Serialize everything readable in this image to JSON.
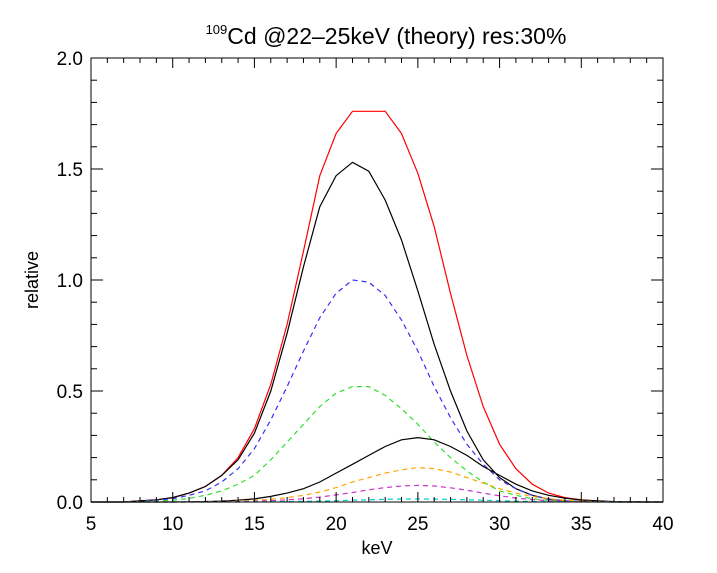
{
  "chart_data": {
    "type": "line",
    "title": "Cd @22–25keV (theory) res:30%",
    "title_superscript": "109",
    "xlabel": "keV",
    "ylabel": "relative",
    "xlim": [
      5,
      40
    ],
    "ylim": [
      0,
      2.0
    ],
    "x_ticks": [
      "5",
      "10",
      "15",
      "20",
      "25",
      "30",
      "35",
      "40"
    ],
    "y_ticks": [
      "0.0",
      "0.5",
      "1.0",
      "1.5",
      "2.0"
    ],
    "grid": false,
    "legend": "none",
    "x": [
      5,
      6,
      7,
      8,
      9,
      10,
      11,
      12,
      13,
      14,
      15,
      16,
      17,
      18,
      19,
      20,
      21,
      22,
      23,
      24,
      25,
      26,
      27,
      28,
      29,
      30,
      31,
      32,
      33,
      34,
      35,
      36,
      37,
      38,
      39,
      40
    ],
    "series": [
      {
        "color": "#ff0000",
        "dash": "solid",
        "values": [
          0.0,
          0.0,
          0.0,
          0.005,
          0.01,
          0.02,
          0.04,
          0.07,
          0.12,
          0.2,
          0.33,
          0.53,
          0.8,
          1.13,
          1.47,
          1.66,
          1.76,
          1.76,
          1.76,
          1.66,
          1.48,
          1.24,
          0.94,
          0.66,
          0.43,
          0.26,
          0.15,
          0.08,
          0.04,
          0.02,
          0.01,
          0.004,
          0.001,
          0.0,
          0.0,
          0.0
        ]
      },
      {
        "color": "#000000",
        "dash": "solid",
        "values": [
          0.0,
          0.0,
          0.0,
          0.005,
          0.01,
          0.02,
          0.04,
          0.07,
          0.12,
          0.19,
          0.31,
          0.5,
          0.76,
          1.06,
          1.33,
          1.47,
          1.53,
          1.49,
          1.36,
          1.18,
          0.95,
          0.71,
          0.5,
          0.32,
          0.19,
          0.11,
          0.06,
          0.03,
          0.013,
          0.005,
          0.002,
          0.001,
          0.0,
          0.0,
          0.0,
          0.0
        ]
      },
      {
        "color": "#3333ee",
        "dash": "dashed",
        "values": [
          0.0,
          0.0,
          0.0,
          0.003,
          0.008,
          0.015,
          0.03,
          0.05,
          0.09,
          0.15,
          0.24,
          0.37,
          0.52,
          0.68,
          0.83,
          0.94,
          1.0,
          0.99,
          0.93,
          0.82,
          0.68,
          0.52,
          0.38,
          0.26,
          0.17,
          0.1,
          0.06,
          0.03,
          0.012,
          0.005,
          0.002,
          0.001,
          0.0,
          0.0,
          0.0,
          0.0
        ]
      },
      {
        "color": "#33dd33",
        "dash": "dashed",
        "values": [
          0.0,
          0.0,
          0.0,
          0.002,
          0.004,
          0.008,
          0.016,
          0.03,
          0.05,
          0.08,
          0.12,
          0.19,
          0.27,
          0.35,
          0.43,
          0.49,
          0.52,
          0.52,
          0.48,
          0.42,
          0.35,
          0.27,
          0.2,
          0.14,
          0.09,
          0.05,
          0.03,
          0.015,
          0.007,
          0.003,
          0.001,
          0.0,
          0.0,
          0.0,
          0.0,
          0.0
        ]
      },
      {
        "color": "#000000",
        "dash": "solid",
        "values": [
          0.0,
          0.0,
          0.0,
          0.0,
          0.0,
          0.0,
          0.001,
          0.002,
          0.004,
          0.008,
          0.014,
          0.025,
          0.04,
          0.06,
          0.09,
          0.13,
          0.17,
          0.21,
          0.25,
          0.28,
          0.29,
          0.28,
          0.25,
          0.21,
          0.16,
          0.12,
          0.08,
          0.05,
          0.03,
          0.017,
          0.009,
          0.005,
          0.002,
          0.001,
          0.0,
          0.0
        ]
      },
      {
        "color": "#ffa500",
        "dash": "dashed",
        "values": [
          0.0,
          0.0,
          0.0,
          0.0,
          0.0,
          0.0,
          0.0,
          0.001,
          0.002,
          0.004,
          0.007,
          0.012,
          0.02,
          0.03,
          0.045,
          0.065,
          0.09,
          0.11,
          0.13,
          0.145,
          0.155,
          0.15,
          0.135,
          0.11,
          0.085,
          0.06,
          0.04,
          0.025,
          0.015,
          0.008,
          0.004,
          0.002,
          0.001,
          0.0,
          0.0,
          0.0
        ]
      },
      {
        "color": "#cc33cc",
        "dash": "dashed",
        "values": [
          0.0,
          0.0,
          0.0,
          0.0,
          0.0,
          0.0,
          0.0,
          0.0,
          0.001,
          0.002,
          0.003,
          0.006,
          0.01,
          0.015,
          0.022,
          0.032,
          0.043,
          0.055,
          0.065,
          0.072,
          0.075,
          0.072,
          0.064,
          0.053,
          0.04,
          0.028,
          0.018,
          0.011,
          0.006,
          0.003,
          0.0015,
          0.0007,
          0.0003,
          0.0,
          0.0,
          0.0
        ]
      },
      {
        "color": "#00cccc",
        "dash": "dashed",
        "values": [
          0.0,
          0.0,
          0.0,
          0.0,
          0.0,
          0.0,
          0.0,
          0.0,
          0.0,
          0.0,
          0.001,
          0.001,
          0.002,
          0.003,
          0.004,
          0.006,
          0.008,
          0.01,
          0.012,
          0.013,
          0.014,
          0.013,
          0.012,
          0.01,
          0.008,
          0.006,
          0.004,
          0.002,
          0.001,
          0.001,
          0.0,
          0.0,
          0.0,
          0.0,
          0.0,
          0.0
        ]
      }
    ]
  }
}
